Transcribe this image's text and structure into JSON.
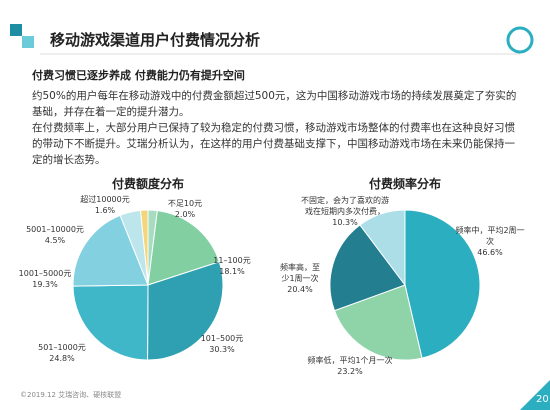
{
  "header": {
    "title": "移动游戏渠道用户付费情况分析"
  },
  "subtitle": "付费习惯已逐步养成 付费能力仍有提升空间",
  "paragraphs": [
    "约50%的用户每年在移动游戏中的付费金额超过500元，这为中国移动游戏市场的持续发展奠定了夯实的基础，并存在着一定的提升潜力。",
    "在付费频率上，大部分用户已保持了较为稳定的付费习惯，移动游戏市场整体的付费率也在这种良好习惯的带动下不断提升。艾瑞分析认为，在这样的用户付费基础支撑下，中国移动游戏市场在未来仍能保持一定的增长态势。"
  ],
  "footer": "©2019.12 艾瑞咨询、硬核联盟",
  "page_number": "20",
  "chart_data": [
    {
      "type": "pie",
      "title": "付费额度分布",
      "categories": [
        "不足10元",
        "11–100元",
        "101–500元",
        "501–1000元",
        "1001–5000元",
        "5001–10000元",
        "超过10000元"
      ],
      "values": [
        2.0,
        18.1,
        30.3,
        24.8,
        19.3,
        4.5,
        1.6
      ],
      "value_labels": [
        "2.0%",
        "18.1%",
        "30.3%",
        "24.8%",
        "19.3%",
        "4.5%",
        "1.6%"
      ],
      "colors": [
        "#a8dcc0",
        "#82cfa2",
        "#2f9fb2",
        "#3fb7c8",
        "#82d0e0",
        "#bce5ec",
        "#f3d57c"
      ]
    },
    {
      "type": "pie",
      "title": "付费频率分布",
      "categories": [
        "频率中，平均2周一次",
        "频率低，平均1个月一次",
        "频率高，至少1周一次",
        "不固定，会为了喜欢的游戏在短期内多次付费，"
      ],
      "values": [
        46.6,
        23.2,
        20.4,
        10.3
      ],
      "value_labels": [
        "46.6%",
        "23.2%",
        "20.4%",
        "10.3%"
      ],
      "colors": [
        "#2aaec0",
        "#8fd3a8",
        "#237e90",
        "#abdee6"
      ]
    }
  ]
}
